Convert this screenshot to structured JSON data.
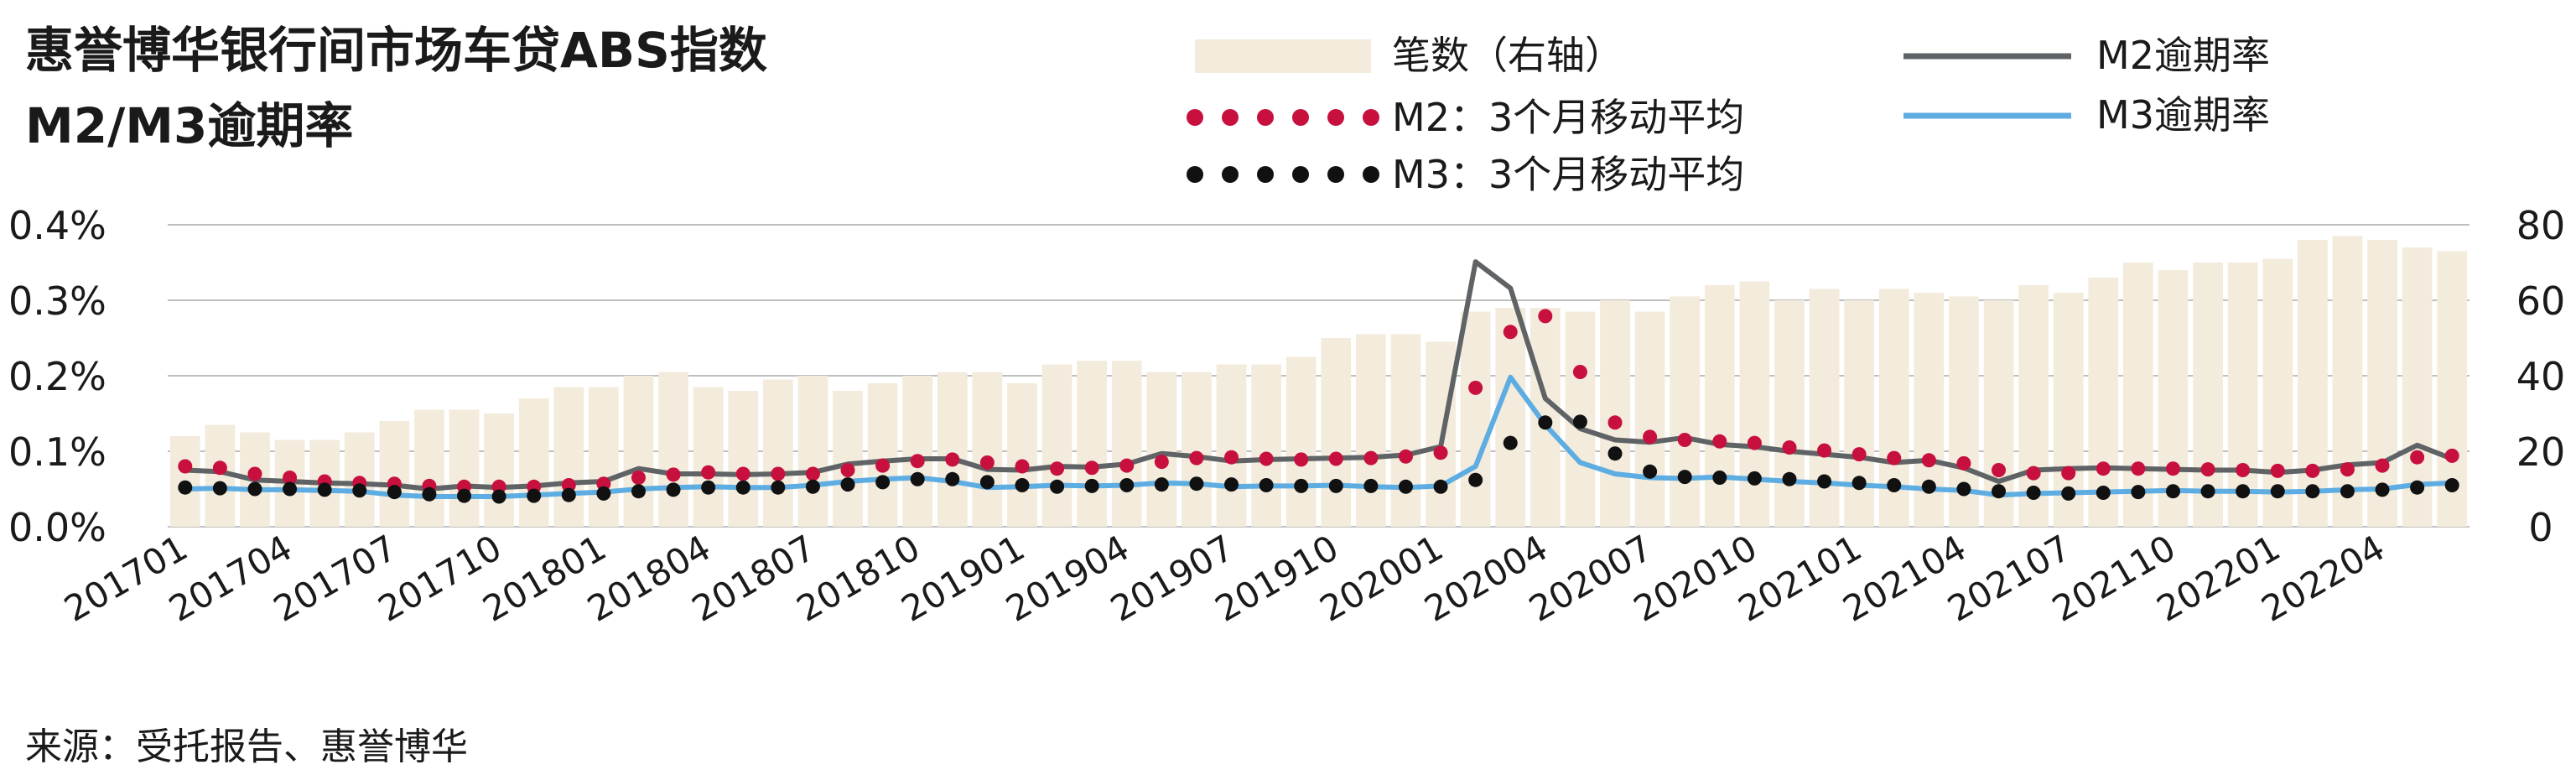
{
  "chart_data": {
    "type": "bar+line",
    "title_line1": "惠誉博华银行间市场车贷ABS指数",
    "title_line2": "M2/M3逾期率",
    "source": "来源：受托报告、惠誉博华",
    "legend": {
      "bars": "笔数（右轴）",
      "m2_avg": "M2：3个月移动平均",
      "m3_avg": "M3：3个月移动平均",
      "m2": "M2逾期率",
      "m3": "M3逾期率"
    },
    "colors": {
      "bars": "#F3EBDC",
      "m2": "#5F6366",
      "m3": "#5DADE2",
      "m2_avg": "#C8103E",
      "m3_avg": "#111111",
      "grid": "#BFBFBF"
    },
    "y_left": {
      "min": 0,
      "max": 0.4,
      "ticks": [
        "0.0%",
        "0.1%",
        "0.2%",
        "0.3%",
        "0.4%"
      ]
    },
    "y_right": {
      "min": 0,
      "max": 80,
      "ticks": [
        "0",
        "20",
        "40",
        "60",
        "80"
      ]
    },
    "x_tick_labels": [
      "201701",
      "201704",
      "201707",
      "201710",
      "201801",
      "201804",
      "201807",
      "201810",
      "201901",
      "201904",
      "201907",
      "201910",
      "202001",
      "202004",
      "202007",
      "202010",
      "202101",
      "202104",
      "202107",
      "202110",
      "202201",
      "202204"
    ],
    "categories": [
      "201701",
      "201702",
      "201703",
      "201704",
      "201705",
      "201706",
      "201707",
      "201708",
      "201709",
      "201710",
      "201711",
      "201712",
      "201801",
      "201802",
      "201803",
      "201804",
      "201805",
      "201806",
      "201807",
      "201808",
      "201809",
      "201810",
      "201811",
      "201812",
      "201901",
      "201902",
      "201903",
      "201904",
      "201905",
      "201906",
      "201907",
      "201908",
      "201909",
      "201910",
      "201911",
      "201912",
      "202001",
      "202002",
      "202003",
      "202004",
      "202005",
      "202006",
      "202007",
      "202008",
      "202009",
      "202010",
      "202011",
      "202012",
      "202101",
      "202102",
      "202103",
      "202104",
      "202105",
      "202106",
      "202107",
      "202108",
      "202109",
      "202110",
      "202111",
      "202112",
      "202201",
      "202202",
      "202203",
      "202204",
      "202205",
      "202206"
    ],
    "series": [
      {
        "name": "笔数（右轴）",
        "kind": "bar",
        "axis": "right",
        "values": [
          24,
          27,
          25,
          23,
          23,
          25,
          28,
          31,
          31,
          30,
          34,
          37,
          37,
          40,
          41,
          37,
          36,
          39,
          40,
          36,
          38,
          40,
          41,
          41,
          38,
          43,
          44,
          44,
          41,
          41,
          43,
          43,
          45,
          50,
          51,
          51,
          49,
          57,
          58,
          58,
          57,
          60,
          57,
          61,
          64,
          65,
          60,
          63,
          60,
          63,
          62,
          61,
          60,
          64,
          62,
          66,
          70,
          68,
          70,
          70,
          71,
          76,
          77,
          76,
          74,
          73
        ]
      },
      {
        "name": "M2逾期率",
        "kind": "line",
        "axis": "left",
        "values": [
          0.075,
          0.073,
          0.062,
          0.06,
          0.058,
          0.057,
          0.055,
          0.05,
          0.054,
          0.052,
          0.054,
          0.058,
          0.06,
          0.077,
          0.07,
          0.07,
          0.069,
          0.07,
          0.072,
          0.083,
          0.087,
          0.09,
          0.09,
          0.076,
          0.075,
          0.08,
          0.079,
          0.083,
          0.097,
          0.093,
          0.087,
          0.089,
          0.09,
          0.091,
          0.092,
          0.095,
          0.106,
          0.351,
          0.316,
          0.17,
          0.13,
          0.115,
          0.112,
          0.118,
          0.109,
          0.106,
          0.1,
          0.096,
          0.092,
          0.085,
          0.088,
          0.078,
          0.06,
          0.075,
          0.077,
          0.078,
          0.077,
          0.076,
          0.075,
          0.075,
          0.072,
          0.075,
          0.082,
          0.085,
          0.108,
          0.09
        ]
      },
      {
        "name": "M3逾期率",
        "kind": "line",
        "axis": "left",
        "values": [
          0.05,
          0.051,
          0.049,
          0.049,
          0.048,
          0.047,
          0.042,
          0.04,
          0.04,
          0.04,
          0.042,
          0.044,
          0.046,
          0.05,
          0.052,
          0.053,
          0.052,
          0.052,
          0.055,
          0.06,
          0.063,
          0.065,
          0.06,
          0.052,
          0.053,
          0.055,
          0.054,
          0.055,
          0.058,
          0.057,
          0.053,
          0.054,
          0.054,
          0.055,
          0.053,
          0.052,
          0.054,
          0.08,
          0.198,
          0.135,
          0.085,
          0.07,
          0.065,
          0.064,
          0.066,
          0.063,
          0.06,
          0.058,
          0.055,
          0.053,
          0.05,
          0.048,
          0.042,
          0.044,
          0.045,
          0.046,
          0.047,
          0.048,
          0.047,
          0.047,
          0.046,
          0.047,
          0.049,
          0.05,
          0.056,
          0.058
        ]
      },
      {
        "name": "M2：3个月移动平均",
        "kind": "dots",
        "axis": "left",
        "values": [
          0.08,
          0.078,
          0.07,
          0.065,
          0.06,
          0.058,
          0.057,
          0.054,
          0.053,
          0.053,
          0.053,
          0.055,
          0.057,
          0.065,
          0.069,
          0.072,
          0.07,
          0.07,
          0.07,
          0.075,
          0.081,
          0.087,
          0.089,
          0.085,
          0.08,
          0.077,
          0.078,
          0.081,
          0.086,
          0.091,
          0.092,
          0.09,
          0.089,
          0.09,
          0.091,
          0.093,
          0.098,
          0.184,
          0.258,
          0.279,
          0.205,
          0.138,
          0.119,
          0.115,
          0.113,
          0.111,
          0.105,
          0.101,
          0.096,
          0.091,
          0.088,
          0.084,
          0.075,
          0.071,
          0.071,
          0.077,
          0.077,
          0.077,
          0.076,
          0.075,
          0.074,
          0.074,
          0.076,
          0.081,
          0.092,
          0.094
        ]
      },
      {
        "name": "M3：3个月移动平均",
        "kind": "dots",
        "axis": "left",
        "values": [
          0.052,
          0.051,
          0.05,
          0.05,
          0.049,
          0.048,
          0.046,
          0.043,
          0.041,
          0.04,
          0.041,
          0.042,
          0.044,
          0.047,
          0.049,
          0.052,
          0.052,
          0.052,
          0.053,
          0.056,
          0.059,
          0.063,
          0.063,
          0.059,
          0.055,
          0.053,
          0.054,
          0.055,
          0.056,
          0.057,
          0.056,
          0.055,
          0.054,
          0.054,
          0.054,
          0.053,
          0.053,
          0.062,
          0.111,
          0.138,
          0.139,
          0.097,
          0.073,
          0.066,
          0.065,
          0.064,
          0.063,
          0.06,
          0.058,
          0.055,
          0.053,
          0.05,
          0.047,
          0.045,
          0.044,
          0.045,
          0.046,
          0.047,
          0.047,
          0.047,
          0.047,
          0.047,
          0.047,
          0.049,
          0.052,
          0.055
        ]
      }
    ]
  }
}
